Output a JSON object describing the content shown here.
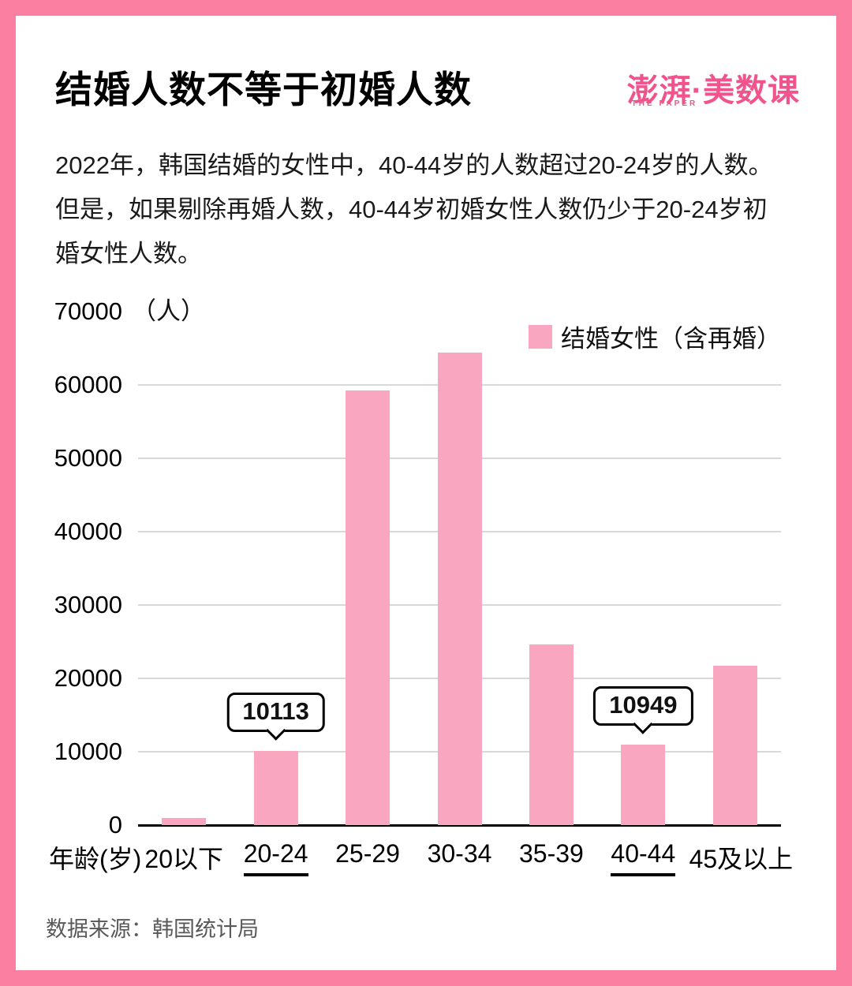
{
  "page": {
    "title": "结婚人数不等于初婚人数",
    "intro": "2022年，韩国结婚的女性中，40-44岁的人数超过20-24岁的人数。但是，如果剔除再婚人数，40-44岁初婚女性人数仍少于20-24岁初婚女性人数。",
    "source": "数据来源：韩国统计局",
    "logo": {
      "text": "澎湃·美数课",
      "subtext": "THE PAPER"
    }
  },
  "colors": {
    "frame": "#FA7FA0",
    "bar": "#F9A6C1",
    "logo": "#F0548C",
    "grid": "#D8D8D8",
    "axis": "#000000",
    "source_text": "#595959"
  },
  "chart_data": {
    "type": "bar",
    "title": "结婚人数不等于初婚人数",
    "categories": [
      "20以下",
      "20-24",
      "25-29",
      "30-34",
      "35-39",
      "40-44",
      "45及以上"
    ],
    "values": [
      1000,
      10113,
      59200,
      64400,
      24600,
      10949,
      21700
    ],
    "xlabel": "年龄(岁)",
    "ylabel": "（人）",
    "ylim": [
      0,
      70000
    ],
    "yticks": [
      0,
      10000,
      20000,
      30000,
      40000,
      50000,
      60000,
      70000
    ],
    "grid": true,
    "legend": [
      {
        "label": "结婚女性（含再婚）",
        "color": "#F9A6C1"
      }
    ],
    "legend_position": "top-right",
    "annotations": [
      {
        "category": "20-24",
        "value": 10113,
        "text": "10113"
      },
      {
        "category": "40-44",
        "value": 10949,
        "text": "10949"
      }
    ],
    "underlined_categories": [
      "20-24",
      "40-44"
    ]
  }
}
